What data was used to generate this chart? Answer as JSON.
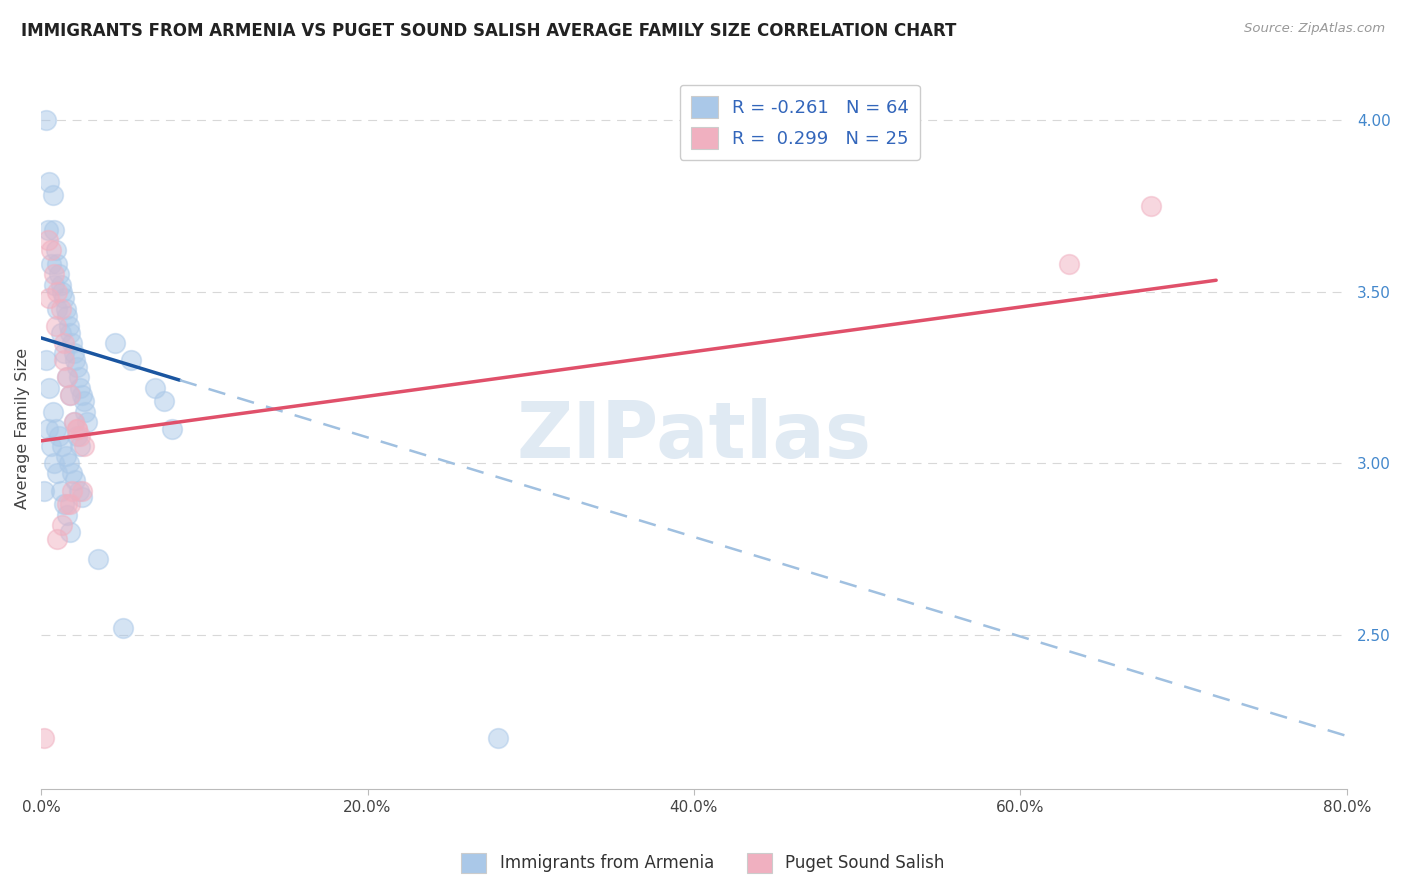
{
  "title": "IMMIGRANTS FROM ARMENIA VS PUGET SOUND SALISH AVERAGE FAMILY SIZE CORRELATION CHART",
  "source": "Source: ZipAtlas.com",
  "ylabel": "Average Family Size",
  "ylim": [
    2.05,
    4.15
  ],
  "xlim": [
    0.0,
    80.0
  ],
  "yticks_right": [
    2.5,
    3.0,
    3.5,
    4.0
  ],
  "xticks": [
    0.0,
    20.0,
    40.0,
    60.0,
    80.0
  ],
  "xtick_labels": [
    "0.0%",
    "20.0%",
    "40.0%",
    "60.0%",
    "80.0%"
  ],
  "blue_color": "#aac8e8",
  "pink_color": "#f0b0c0",
  "blue_line_color": "#1a55a0",
  "pink_line_color": "#e0506a",
  "blue_dash_color": "#a0c0e0",
  "blue_R": -0.261,
  "blue_N": 64,
  "pink_R": 0.299,
  "pink_N": 25,
  "legend_label_blue": "Immigrants from Armenia",
  "legend_label_pink": "Puget Sound Salish",
  "blue_scatter_x": [
    0.3,
    0.5,
    0.7,
    0.8,
    0.9,
    1.0,
    1.1,
    1.2,
    1.3,
    1.4,
    1.5,
    1.6,
    1.7,
    1.8,
    1.9,
    2.0,
    2.1,
    2.2,
    2.3,
    2.4,
    2.5,
    2.6,
    2.7,
    2.8,
    0.4,
    0.6,
    0.8,
    1.0,
    1.2,
    1.4,
    1.6,
    1.8,
    2.0,
    2.2,
    2.4,
    0.3,
    0.5,
    0.7,
    0.9,
    1.1,
    1.3,
    1.5,
    1.7,
    1.9,
    2.1,
    2.3,
    2.5,
    0.4,
    0.6,
    0.8,
    1.0,
    1.2,
    1.4,
    1.6,
    4.5,
    5.5,
    7.0,
    7.5,
    8.0,
    0.2,
    1.8,
    3.5,
    5.0,
    28.0
  ],
  "blue_scatter_y": [
    4.0,
    3.82,
    3.78,
    3.68,
    3.62,
    3.58,
    3.55,
    3.52,
    3.5,
    3.48,
    3.45,
    3.43,
    3.4,
    3.38,
    3.35,
    3.32,
    3.3,
    3.28,
    3.25,
    3.22,
    3.2,
    3.18,
    3.15,
    3.12,
    3.68,
    3.58,
    3.52,
    3.45,
    3.38,
    3.32,
    3.25,
    3.2,
    3.12,
    3.08,
    3.05,
    3.3,
    3.22,
    3.15,
    3.1,
    3.08,
    3.05,
    3.02,
    3.0,
    2.97,
    2.95,
    2.92,
    2.9,
    3.1,
    3.05,
    3.0,
    2.97,
    2.92,
    2.88,
    2.85,
    3.35,
    3.3,
    3.22,
    3.18,
    3.1,
    2.92,
    2.8,
    2.72,
    2.52,
    2.2
  ],
  "pink_scatter_x": [
    0.4,
    0.6,
    0.8,
    1.0,
    1.2,
    1.4,
    1.6,
    1.8,
    2.0,
    2.2,
    2.4,
    2.6,
    1.0,
    1.3,
    1.6,
    1.9,
    2.2,
    2.5,
    0.5,
    0.9,
    1.4,
    1.8,
    63.0,
    68.0,
    0.2
  ],
  "pink_scatter_y": [
    3.65,
    3.62,
    3.55,
    3.5,
    3.45,
    3.35,
    3.25,
    3.2,
    3.12,
    3.1,
    3.08,
    3.05,
    2.78,
    2.82,
    2.88,
    2.92,
    3.1,
    2.92,
    3.48,
    3.4,
    3.3,
    2.88,
    3.58,
    3.75,
    2.2
  ],
  "blue_trend_intercept": 3.365,
  "blue_trend_slope": -0.0145,
  "blue_trend_solid_end": 8.5,
  "pink_trend_intercept": 3.065,
  "pink_trend_slope": 0.0065,
  "pink_trend_solid_end": 72.0,
  "background_color": "#ffffff",
  "grid_color": "#d8d8d8",
  "watermark": "ZIPatlas",
  "watermark_color": "#ccdcec"
}
